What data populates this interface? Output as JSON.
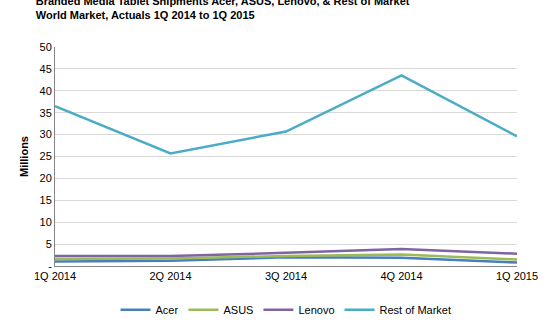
{
  "chart_data": {
    "type": "line",
    "title": "Branded Media Tablet Shipments Acer, ASUS, Lenovo, & Rest of Market\nWorld Market, Actuals 1Q 2014 to 1Q 2015",
    "y_label": "Millions",
    "categories": [
      "1Q 2014",
      "2Q 2014",
      "3Q 2014",
      "4Q 2014",
      "1Q 2015"
    ],
    "series": [
      {
        "name": "Acer",
        "color": "#4a7ebb",
        "values": [
          1.0,
          1.2,
          2.0,
          1.9,
          0.8
        ]
      },
      {
        "name": "ASUS",
        "color": "#9bbb59",
        "values": [
          1.6,
          1.7,
          2.3,
          2.6,
          1.5
        ]
      },
      {
        "name": "Lenovo",
        "color": "#8064a2",
        "values": [
          2.3,
          2.3,
          3.0,
          3.9,
          2.8
        ]
      },
      {
        "name": "Rest of Market",
        "color": "#4bacc6",
        "values": [
          36.5,
          25.7,
          30.7,
          43.5,
          29.6
        ]
      }
    ],
    "ylim": [
      0,
      50
    ],
    "yticks": [
      {
        "value": 0,
        "label": "-"
      },
      5,
      10,
      15,
      20,
      25,
      30,
      35,
      40,
      45,
      50
    ],
    "grid": true,
    "legend": "bottom"
  }
}
